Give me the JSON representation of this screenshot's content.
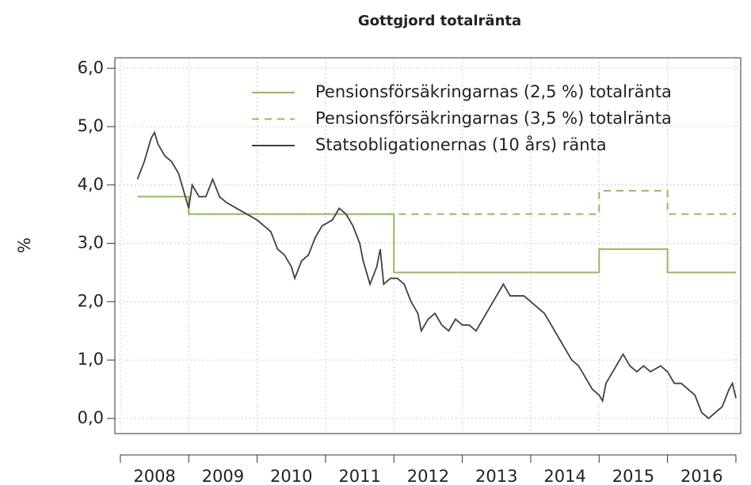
{
  "chart_data": {
    "type": "line",
    "title": "Gottgjord totalränta",
    "ylabel": "%",
    "xlim": [
      2007.92,
      2017.07
    ],
    "ylim": [
      -0.26,
      6.18
    ],
    "xtick_marks": [
      2008,
      2009,
      2010,
      2011,
      2012,
      2013,
      2014,
      2015,
      2016,
      2017
    ],
    "xticks": [
      {
        "value": 2008.5,
        "label": "2008"
      },
      {
        "value": 2009.5,
        "label": "2009"
      },
      {
        "value": 2010.5,
        "label": "2010"
      },
      {
        "value": 2011.5,
        "label": "2011"
      },
      {
        "value": 2012.5,
        "label": "2012"
      },
      {
        "value": 2013.5,
        "label": "2013"
      },
      {
        "value": 2014.5,
        "label": "2014"
      },
      {
        "value": 2015.5,
        "label": "2015"
      },
      {
        "value": 2016.5,
        "label": "2016"
      }
    ],
    "yticks": [
      {
        "value": 0,
        "label": "0,0"
      },
      {
        "value": 1,
        "label": "1,0"
      },
      {
        "value": 2,
        "label": "2,0"
      },
      {
        "value": 3,
        "label": "3,0"
      },
      {
        "value": 4,
        "label": "4,0"
      },
      {
        "value": 5,
        "label": "5,0"
      },
      {
        "value": 6,
        "label": "6,0"
      }
    ],
    "grid": true,
    "legend": "top-right",
    "series": [
      {
        "name": "Pensionsförsäkringarnas (2,5 %) totalränta",
        "color": "#8fbc5a",
        "dash": false,
        "x": [
          2008.25,
          2009,
          2009,
          2012,
          2012,
          2015,
          2015,
          2016,
          2016,
          2017
        ],
        "values": [
          3.8,
          3.8,
          3.5,
          3.5,
          2.5,
          2.5,
          2.9,
          2.9,
          2.5,
          2.5
        ]
      },
      {
        "name": "Pensionsförsäkringarnas (3,5 %) totalränta",
        "color": "#8fbc5a",
        "dash": true,
        "x": [
          2008.25,
          2009,
          2009,
          2015,
          2015,
          2016,
          2016,
          2017
        ],
        "values": [
          3.8,
          3.8,
          3.5,
          3.5,
          3.9,
          3.9,
          3.5,
          3.5
        ]
      },
      {
        "name": "Statsobligationernas (10 års) ränta",
        "color": "#404040",
        "dash": false,
        "x": [
          2008.25,
          2008.35,
          2008.45,
          2008.5,
          2008.55,
          2008.65,
          2008.75,
          2008.85,
          2008.95,
          2009.0,
          2009.05,
          2009.15,
          2009.25,
          2009.35,
          2009.45,
          2009.55,
          2009.7,
          2009.85,
          2010.0,
          2010.1,
          2010.2,
          2010.3,
          2010.4,
          2010.5,
          2010.55,
          2010.65,
          2010.75,
          2010.85,
          2010.95,
          2011.1,
          2011.2,
          2011.3,
          2011.4,
          2011.5,
          2011.55,
          2011.65,
          2011.75,
          2011.8,
          2011.85,
          2011.95,
          2012.05,
          2012.15,
          2012.25,
          2012.35,
          2012.4,
          2012.5,
          2012.6,
          2012.7,
          2012.8,
          2012.9,
          2013.0,
          2013.1,
          2013.2,
          2013.3,
          2013.4,
          2013.5,
          2013.6,
          2013.7,
          2013.8,
          2013.9,
          2014.0,
          2014.1,
          2014.2,
          2014.3,
          2014.4,
          2014.5,
          2014.6,
          2014.7,
          2014.8,
          2014.9,
          2015.0,
          2015.05,
          2015.1,
          2015.2,
          2015.3,
          2015.35,
          2015.45,
          2015.55,
          2015.65,
          2015.75,
          2015.9,
          2016.0,
          2016.1,
          2016.2,
          2016.3,
          2016.4,
          2016.5,
          2016.6,
          2016.7,
          2016.8,
          2016.9,
          2016.95,
          2017.0
        ],
        "values": [
          4.1,
          4.4,
          4.8,
          4.9,
          4.7,
          4.5,
          4.4,
          4.2,
          3.8,
          3.6,
          4.0,
          3.8,
          3.8,
          4.1,
          3.8,
          3.7,
          3.6,
          3.5,
          3.4,
          3.3,
          3.2,
          2.9,
          2.8,
          2.6,
          2.4,
          2.7,
          2.8,
          3.1,
          3.3,
          3.4,
          3.6,
          3.5,
          3.3,
          3.0,
          2.7,
          2.3,
          2.6,
          2.9,
          2.3,
          2.4,
          2.4,
          2.3,
          2.0,
          1.8,
          1.5,
          1.7,
          1.8,
          1.6,
          1.5,
          1.7,
          1.6,
          1.6,
          1.5,
          1.7,
          1.9,
          2.1,
          2.3,
          2.1,
          2.1,
          2.1,
          2.0,
          1.9,
          1.8,
          1.6,
          1.4,
          1.2,
          1.0,
          0.9,
          0.7,
          0.5,
          0.4,
          0.3,
          0.6,
          0.8,
          1.0,
          1.1,
          0.9,
          0.8,
          0.9,
          0.8,
          0.9,
          0.8,
          0.6,
          0.6,
          0.5,
          0.4,
          0.1,
          0.0,
          0.1,
          0.2,
          0.5,
          0.6,
          0.35
        ]
      }
    ]
  }
}
